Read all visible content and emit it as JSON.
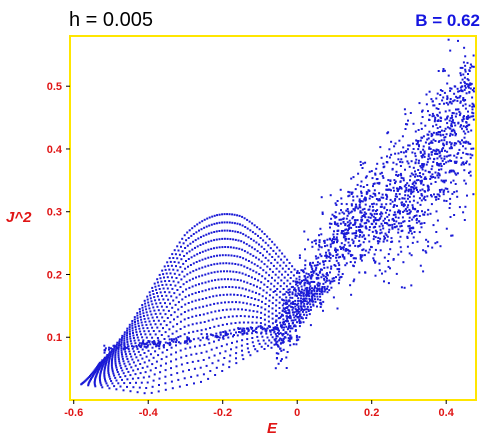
{
  "header": {
    "left_text": "h = 0.005",
    "right_text": "B = 0.62"
  },
  "colors": {
    "frame": "#ffe600",
    "points": "#1a1ad6",
    "ticks": "#e01515"
  },
  "chart_data": {
    "type": "scatter",
    "xlabel": "E",
    "ylabel": "J^2",
    "xlim": [
      -0.61,
      0.48
    ],
    "ylim": [
      0.0,
      0.58
    ],
    "x_ticks": [
      "-0.6",
      "-0.4",
      "-0.2",
      "0",
      "0.2",
      "0.4"
    ],
    "y_ticks": [
      "0.1",
      "0.2",
      "0.3",
      "0.4",
      "0.5"
    ],
    "grid": false,
    "regular_region": {
      "description_free_params": true,
      "num_curves": 22,
      "top_envelope": [
        [
          -0.58,
          0.1
        ],
        [
          -0.45,
          0.18
        ],
        [
          -0.3,
          0.27
        ],
        [
          -0.15,
          0.32
        ],
        [
          0.0,
          0.345
        ],
        [
          0.1,
          0.35
        ]
      ],
      "bottom_envelope": [
        [
          -0.58,
          0.025
        ],
        [
          -0.4,
          0.01
        ],
        [
          -0.25,
          0.03
        ],
        [
          -0.1,
          0.08
        ],
        [
          0.0,
          0.09
        ],
        [
          0.15,
          0.08
        ]
      ],
      "diagonal_band": [
        [
          -0.52,
          0.08
        ],
        [
          -0.3,
          0.095
        ],
        [
          -0.15,
          0.11
        ],
        [
          -0.05,
          0.115
        ]
      ]
    },
    "chaotic_region": {
      "center_line": [
        [
          -0.05,
          0.1
        ],
        [
          0.05,
          0.2
        ],
        [
          0.15,
          0.27
        ],
        [
          0.3,
          0.33
        ],
        [
          0.47,
          0.46
        ]
      ],
      "spread": 0.045,
      "num_points": 1700
    }
  }
}
